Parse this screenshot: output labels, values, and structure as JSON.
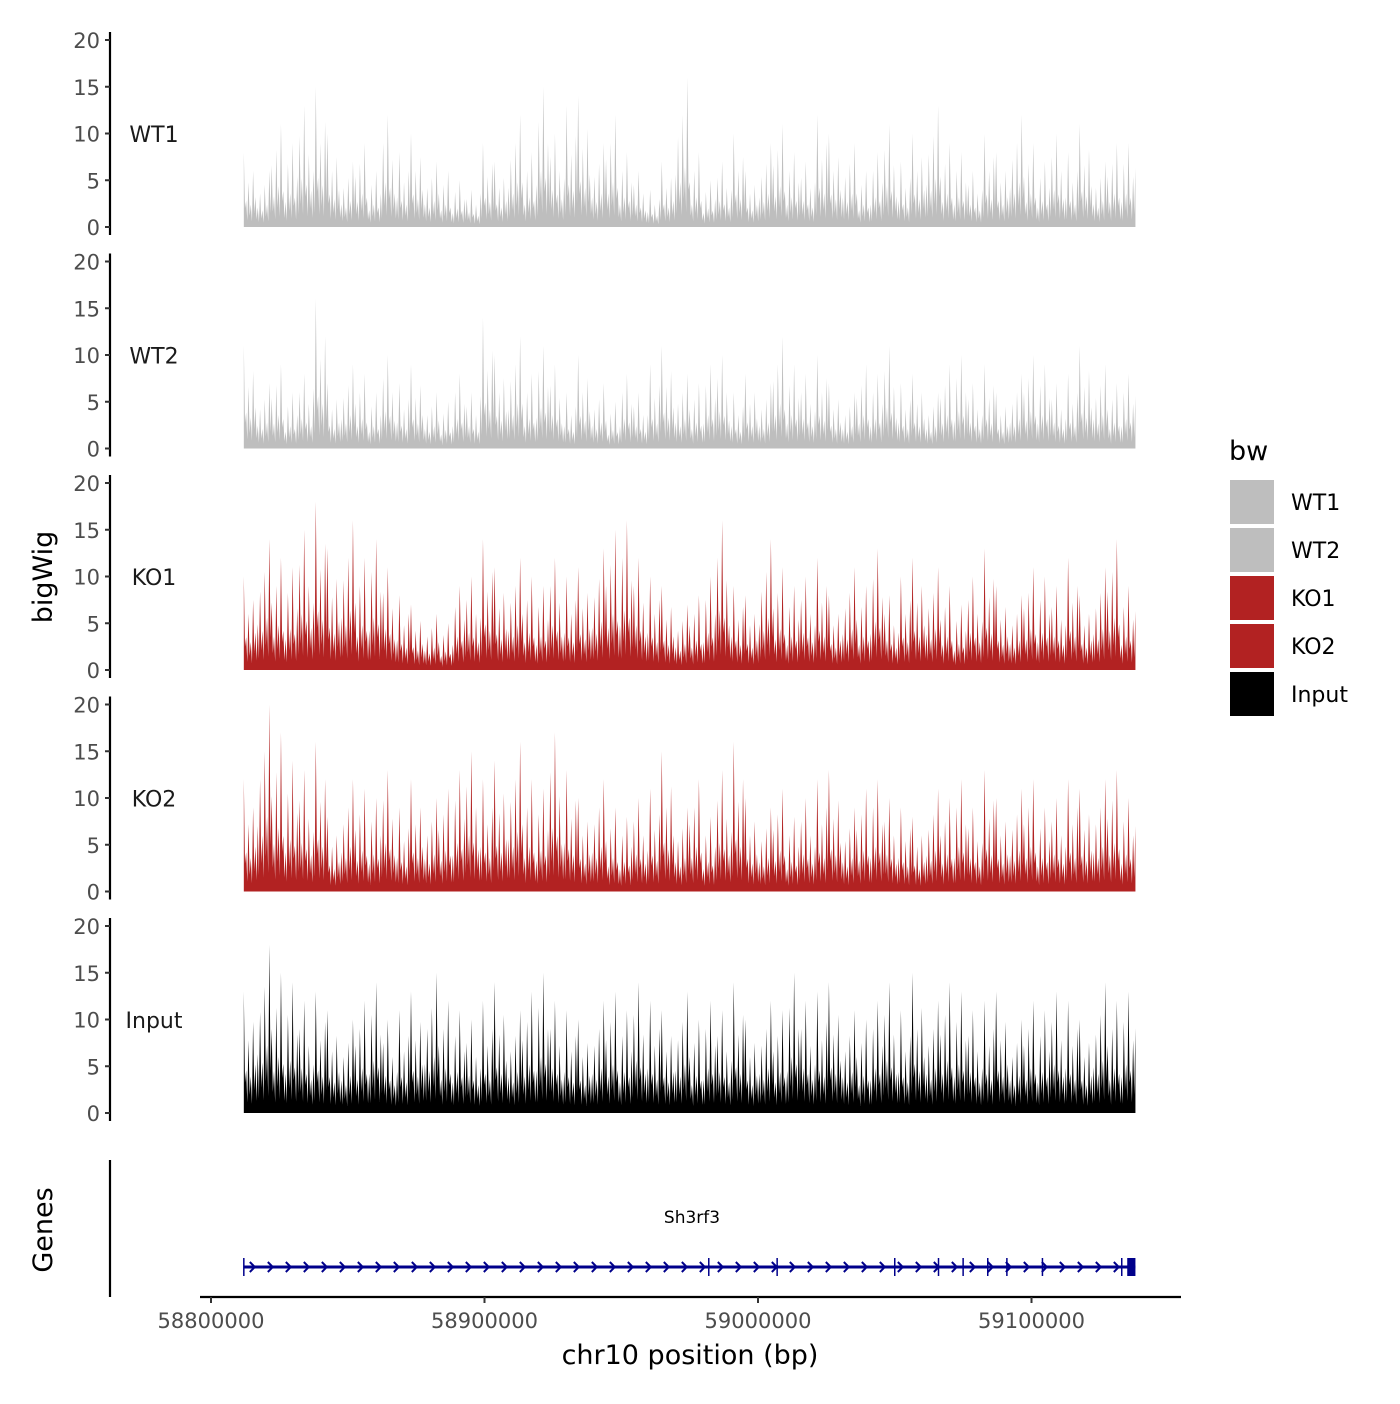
{
  "chart_data": {
    "type": "area",
    "ylabel": "bigWig",
    "xlabel": "chr10 position (bp)",
    "gene_panel_label": "Genes",
    "xlim": [
      58788000,
      59160000
    ],
    "ylim": [
      0,
      20
    ],
    "yticks": [
      "0",
      "5",
      "10",
      "15",
      "20"
    ],
    "xticks": [
      {
        "value": 58800000,
        "label": "58800000"
      },
      {
        "value": 58900000,
        "label": "58900000"
      },
      {
        "value": 59000000,
        "label": "59000000"
      },
      {
        "value": 59100000,
        "label": "59100000"
      }
    ],
    "x_start": 58812000,
    "x_end": 59138000,
    "legend": {
      "title": "bw",
      "position": "right"
    },
    "series": [
      {
        "name": "WT1",
        "color": "#bebebe",
        "values": [
          8,
          6,
          11,
          9,
          13,
          15,
          10,
          7,
          9,
          6,
          12,
          8,
          10,
          7,
          6,
          5,
          4,
          9,
          7,
          12,
          8,
          15,
          10,
          13,
          14,
          9,
          12,
          8,
          6,
          4,
          7,
          16,
          8,
          5,
          7,
          10,
          6,
          9,
          11,
          8,
          7,
          12,
          10,
          9,
          6,
          8,
          11,
          7,
          10,
          13,
          9,
          8,
          6,
          10,
          8,
          12,
          9,
          7,
          10,
          8,
          11,
          7,
          9,
          9
        ]
      },
      {
        "name": "WT2",
        "color": "#bebebe",
        "values": [
          11,
          7,
          9,
          6,
          8,
          16,
          7,
          9,
          8,
          6,
          10,
          7,
          9,
          6,
          5,
          8,
          6,
          14,
          10,
          12,
          8,
          11,
          9,
          6,
          10,
          7,
          5,
          8,
          6,
          9,
          11,
          8,
          7,
          9,
          10,
          6,
          8,
          7,
          12,
          9,
          8,
          10,
          7,
          6,
          9,
          8,
          11,
          7,
          8,
          6,
          9,
          10,
          7,
          9,
          6,
          8,
          10,
          9,
          7,
          8,
          11,
          9,
          7,
          8
        ]
      },
      {
        "name": "KO1",
        "color": "#b22222",
        "values": [
          10,
          14,
          12,
          11,
          15,
          18,
          13,
          16,
          12,
          14,
          11,
          8,
          7,
          6,
          5,
          9,
          10,
          14,
          11,
          12,
          10,
          9,
          12,
          10,
          11,
          13,
          15,
          16,
          12,
          10,
          9,
          7,
          8,
          10,
          16,
          9,
          8,
          14,
          11,
          9,
          10,
          12,
          8,
          11,
          9,
          13,
          8,
          10,
          12,
          11,
          9,
          7,
          10,
          13,
          9,
          8,
          11,
          10,
          9,
          12,
          8,
          11,
          14,
          9
        ]
      },
      {
        "name": "KO2",
        "color": "#b22222",
        "values": [
          12,
          20,
          17,
          14,
          13,
          16,
          8,
          12,
          11,
          10,
          13,
          9,
          12,
          10,
          11,
          13,
          15,
          12,
          14,
          16,
          12,
          11,
          17,
          13,
          10,
          12,
          9,
          8,
          10,
          11,
          15,
          9,
          12,
          8,
          13,
          16,
          10,
          9,
          11,
          8,
          10,
          12,
          13,
          9,
          11,
          12,
          10,
          9,
          8,
          11,
          10,
          12,
          9,
          13,
          10,
          11,
          12,
          9,
          10,
          12,
          11,
          12,
          13,
          10
        ]
      },
      {
        "name": "Input",
        "color": "#000000",
        "values": [
          13,
          18,
          15,
          14,
          12,
          13,
          11,
          10,
          12,
          14,
          10,
          11,
          13,
          15,
          12,
          11,
          10,
          12,
          14,
          11,
          13,
          15,
          12,
          11,
          10,
          12,
          13,
          11,
          14,
          12,
          11,
          13,
          10,
          12,
          11,
          14,
          10,
          12,
          11,
          15,
          12,
          13,
          14,
          11,
          10,
          12,
          14,
          11,
          15,
          12,
          14,
          13,
          11,
          12,
          13,
          10,
          12,
          11,
          13,
          12,
          10,
          14,
          12,
          13
        ]
      }
    ],
    "gene": {
      "name": "Sh3rf3",
      "color": "#00008b",
      "start": 58812000,
      "end": 59138000,
      "strand": "+",
      "exons": [
        58812000,
        58982000,
        59007000,
        59050000,
        59066000,
        59075000,
        59084000,
        59091000,
        59104000,
        59133000
      ],
      "last_exon": [
        59135000,
        59138000
      ]
    }
  }
}
